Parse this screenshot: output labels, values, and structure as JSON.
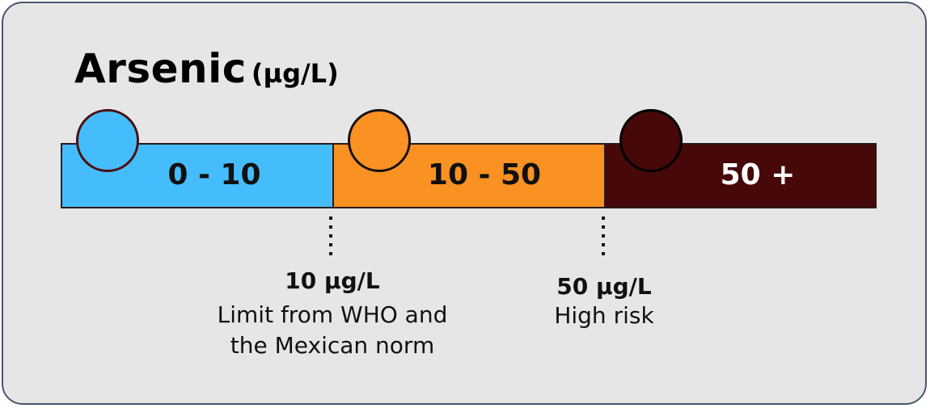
{
  "title": {
    "name": "Arsenic",
    "unit": "(µg/L)"
  },
  "ranges": [
    {
      "label": "0 - 10",
      "color": "#45bdfd",
      "text_color": "#111111",
      "dot_color": "#45bdfd"
    },
    {
      "label": "10 - 50",
      "color": "#fa9123",
      "text_color": "#111111",
      "dot_color": "#fa9123"
    },
    {
      "label": "50 +",
      "color": "#460809",
      "text_color": "#ffffff",
      "dot_color": "#460809"
    }
  ],
  "thresholds": [
    {
      "value": "10 µg/L",
      "lines": [
        "Limit from WHO and",
        "the Mexican norm"
      ]
    },
    {
      "value": "50 µg/L",
      "lines": [
        "High risk"
      ]
    }
  ]
}
